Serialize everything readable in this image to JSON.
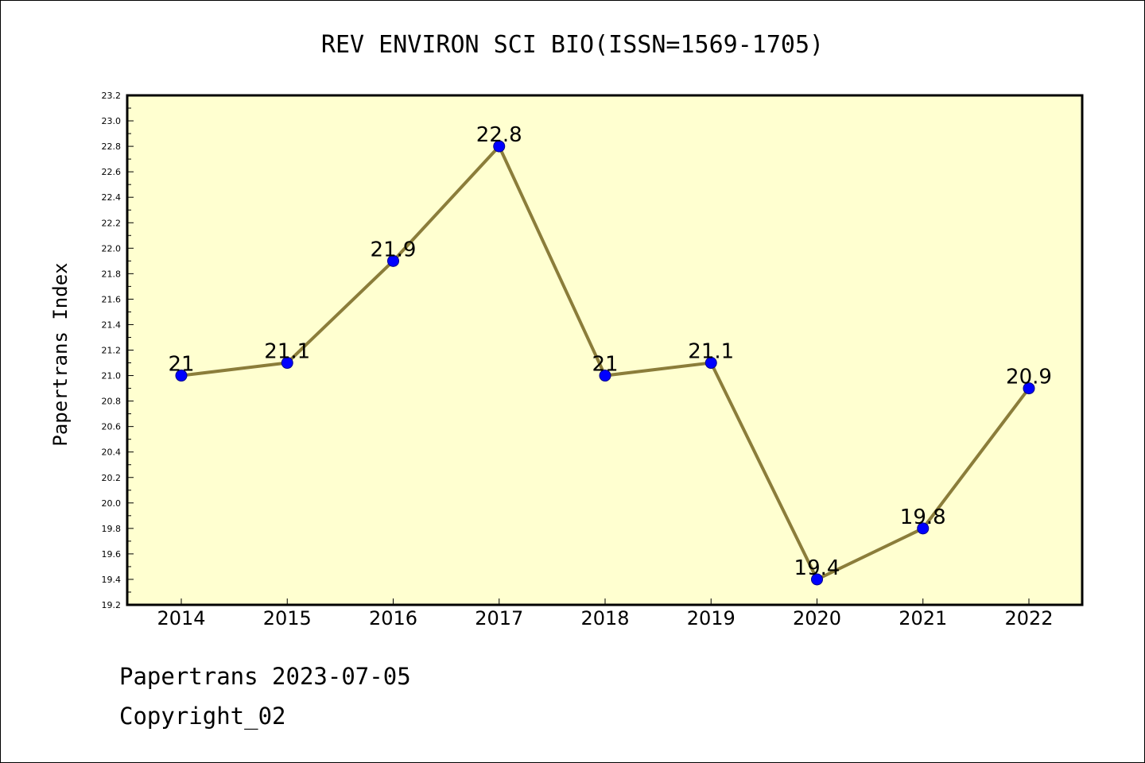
{
  "chart_data": {
    "type": "line",
    "title": "REV ENVIRON SCI BIO(ISSN=1569-1705)",
    "ylabel": "Papertrans Index",
    "xlabel": "",
    "categories": [
      "2014",
      "2015",
      "2016",
      "2017",
      "2018",
      "2019",
      "2020",
      "2021",
      "2022"
    ],
    "values": [
      21,
      21.1,
      21.9,
      22.8,
      21,
      21.1,
      19.4,
      19.8,
      20.9
    ],
    "data_labels": [
      "21",
      "21.1",
      "21.9",
      "22.8",
      "21",
      "21.1",
      "19.4",
      "19.8",
      "20.9"
    ],
    "ylim": [
      19.2,
      23.2
    ],
    "yticks": [
      "19.2",
      "19.4",
      "19.6",
      "19.8",
      "20.0",
      "20.2",
      "20.4",
      "20.6",
      "20.8",
      "21.0",
      "21.2",
      "21.4",
      "21.6",
      "21.8",
      "22.0",
      "22.2",
      "22.4",
      "22.6",
      "22.8",
      "23.0",
      "23.2"
    ],
    "grid": false,
    "colors": {
      "plot_background": "#ffffd0",
      "line": "#8b7d3a",
      "marker": "#0000ff"
    }
  },
  "footer": {
    "line1": "Papertrans 2023-07-05",
    "line2": "Copyright_02"
  }
}
